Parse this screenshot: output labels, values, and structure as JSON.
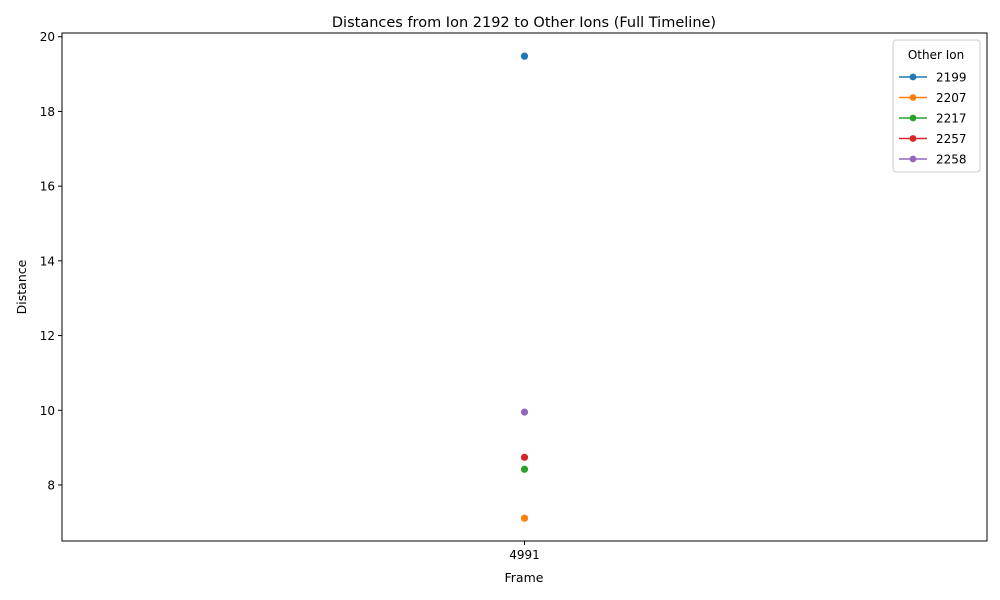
{
  "chart_data": {
    "type": "line",
    "title": "Distances from Ion 2192 to Other Ions (Full Timeline)",
    "xlabel": "Frame",
    "ylabel": "Distance",
    "categories": [
      "4991"
    ],
    "ylim": [
      6.5,
      20.1
    ],
    "yticks": [
      8,
      10,
      12,
      14,
      16,
      18,
      20
    ],
    "yticks_labels": [
      "8",
      "10",
      "12",
      "14",
      "16",
      "18",
      "20"
    ],
    "grid": false,
    "legend_title": "Other Ion",
    "legend_position": "top-right",
    "series": [
      {
        "name": "2199",
        "color": "#1f77b4",
        "values": [
          19.48
        ]
      },
      {
        "name": "2207",
        "color": "#ff7f0e",
        "values": [
          7.11
        ]
      },
      {
        "name": "2217",
        "color": "#2ca02c",
        "values": [
          8.42
        ]
      },
      {
        "name": "2257",
        "color": "#d62728",
        "values": [
          8.74
        ]
      },
      {
        "name": "2258",
        "color": "#9467bd",
        "values": [
          9.95
        ]
      }
    ]
  }
}
